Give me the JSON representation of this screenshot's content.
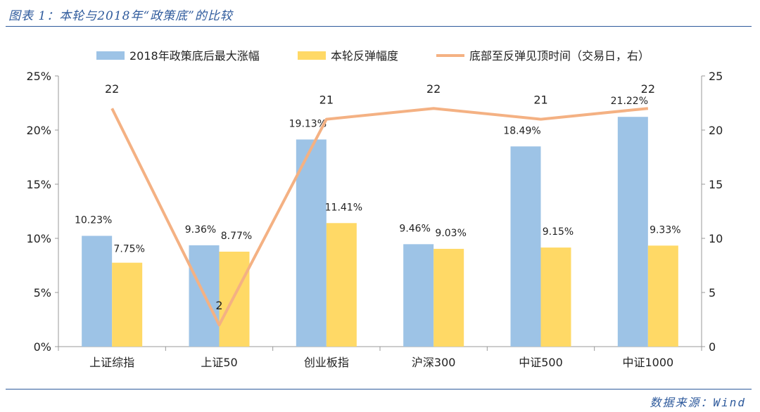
{
  "figure": {
    "title": "图表 1：本轮与2018年“政策底”的比较",
    "source": "数据来源：Wind"
  },
  "colors": {
    "bar_2018": "#9dc3e6",
    "bar_current": "#ffd966",
    "line_days": "#f4b183",
    "rule": "#2e5a9c"
  },
  "chart_data": {
    "type": "bar",
    "categories": [
      "上证综指",
      "上证50",
      "创业板指",
      "沪深300",
      "中证500",
      "中证1000"
    ],
    "series": [
      {
        "name": "2018年政策底后最大涨幅",
        "kind": "bar",
        "axis": "left",
        "values": [
          10.23,
          9.36,
          19.13,
          9.46,
          18.49,
          21.22
        ],
        "labels": [
          "10.23%",
          "9.36%",
          "19.13%",
          "9.46%",
          "18.49%",
          "21.22%"
        ]
      },
      {
        "name": "本轮反弹幅度",
        "kind": "bar",
        "axis": "left",
        "values": [
          7.75,
          8.77,
          11.41,
          9.03,
          9.15,
          9.33
        ],
        "labels": [
          "7.75%",
          "8.77%",
          "11.41%",
          "9.03%",
          "9.15%",
          "9.33%"
        ]
      },
      {
        "name": "底部至反弹见顶时间（交易日，右）",
        "kind": "line",
        "axis": "right",
        "values": [
          22,
          2,
          21,
          22,
          21,
          22
        ],
        "labels": [
          "22",
          "2",
          "21",
          "22",
          "21",
          "22"
        ]
      }
    ],
    "y_left": {
      "min": 0,
      "max": 25,
      "ticks": [
        "0%",
        "5%",
        "10%",
        "15%",
        "20%",
        "25%"
      ]
    },
    "y_right": {
      "min": 0,
      "max": 25,
      "ticks": [
        "0",
        "5",
        "10",
        "15",
        "20",
        "25"
      ]
    },
    "legend_position": "top-center",
    "grid": false
  }
}
